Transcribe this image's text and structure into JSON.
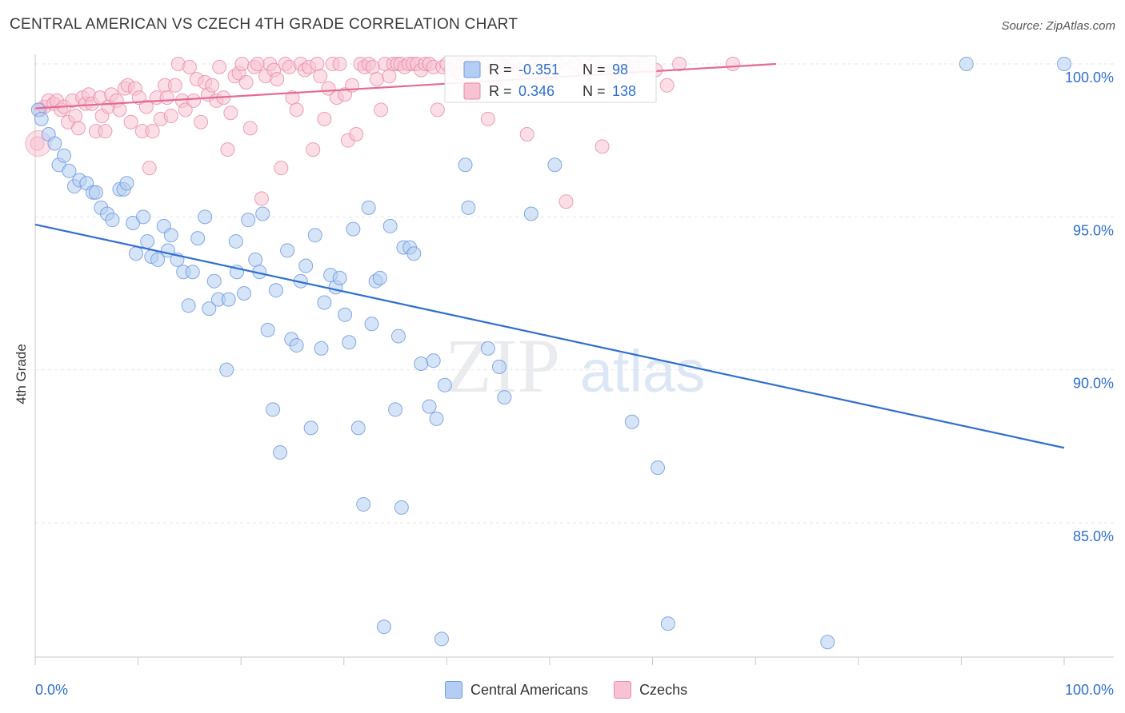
{
  "title": "CENTRAL AMERICAN VS CZECH 4TH GRADE CORRELATION CHART",
  "source": "Source: ZipAtlas.com",
  "watermark": {
    "zip": "ZIP",
    "atlas": "atlas"
  },
  "chart_data": {
    "type": "scatter",
    "ylabel": "4th Grade",
    "xlim": [
      0,
      100
    ],
    "ylim": [
      80.5,
      100.8
    ],
    "x_tick_labels": [
      "0.0%",
      "100.0%"
    ],
    "y_ticks": [
      100,
      95,
      90,
      85
    ],
    "y_tick_labels": [
      "100.0%",
      "95.0%",
      "90.0%",
      "85.0%"
    ],
    "grid": true,
    "legend_position": "top-center",
    "colors": {
      "central": "#6f9be0",
      "central_fill": "#b4cdf3",
      "czech": "#e98aa8",
      "czech_fill": "#f7c2d2",
      "central_line": "#2f6fce",
      "czech_line": "#e56a93",
      "value_text": "#2f6fce"
    },
    "legend_stats": [
      {
        "r_label": "R =",
        "r_value": "-0.351",
        "n_label": "N =",
        "n_value": "98"
      },
      {
        "r_label": "R =",
        "r_value": "0.346",
        "n_label": "N =",
        "n_value": "138"
      }
    ],
    "series": [
      {
        "name": "Central Americans",
        "trend": {
          "x": [
            0,
            100
          ],
          "y": [
            94.75,
            87.45
          ]
        },
        "points": [
          [
            0.3,
            98.5
          ],
          [
            0.6,
            98.2
          ],
          [
            1.3,
            97.7
          ],
          [
            1.9,
            97.4
          ],
          [
            2.3,
            96.7
          ],
          [
            2.8,
            97.0
          ],
          [
            3.3,
            96.5
          ],
          [
            3.8,
            96.0
          ],
          [
            4.3,
            96.2
          ],
          [
            5.0,
            96.1
          ],
          [
            5.6,
            95.8
          ],
          [
            5.9,
            95.8
          ],
          [
            6.4,
            95.3
          ],
          [
            7.0,
            95.1
          ],
          [
            7.5,
            94.9
          ],
          [
            8.2,
            95.9
          ],
          [
            8.6,
            95.9
          ],
          [
            8.9,
            96.1
          ],
          [
            9.5,
            94.8
          ],
          [
            9.8,
            93.8
          ],
          [
            10.5,
            95.0
          ],
          [
            10.9,
            94.2
          ],
          [
            11.3,
            93.7
          ],
          [
            11.9,
            93.6
          ],
          [
            12.5,
            94.7
          ],
          [
            12.9,
            93.9
          ],
          [
            13.2,
            94.4
          ],
          [
            13.8,
            93.6
          ],
          [
            14.4,
            93.2
          ],
          [
            14.9,
            92.1
          ],
          [
            15.3,
            93.2
          ],
          [
            15.8,
            94.3
          ],
          [
            16.5,
            95.0
          ],
          [
            16.9,
            92.0
          ],
          [
            17.4,
            92.9
          ],
          [
            17.8,
            92.3
          ],
          [
            18.8,
            92.3
          ],
          [
            18.6,
            90.0
          ],
          [
            19.5,
            94.2
          ],
          [
            19.6,
            93.2
          ],
          [
            20.3,
            92.5
          ],
          [
            20.7,
            94.9
          ],
          [
            21.4,
            93.6
          ],
          [
            21.8,
            93.2
          ],
          [
            22.1,
            95.1
          ],
          [
            22.6,
            91.3
          ],
          [
            23.1,
            88.7
          ],
          [
            23.4,
            92.6
          ],
          [
            23.8,
            87.3
          ],
          [
            24.5,
            93.9
          ],
          [
            24.9,
            91.0
          ],
          [
            25.4,
            90.8
          ],
          [
            25.8,
            92.9
          ],
          [
            26.3,
            93.4
          ],
          [
            26.8,
            88.1
          ],
          [
            27.2,
            94.4
          ],
          [
            27.8,
            90.7
          ],
          [
            28.1,
            92.2
          ],
          [
            28.7,
            93.1
          ],
          [
            29.2,
            92.7
          ],
          [
            29.6,
            93.0
          ],
          [
            30.1,
            91.8
          ],
          [
            30.5,
            90.9
          ],
          [
            30.9,
            94.6
          ],
          [
            31.4,
            88.1
          ],
          [
            31.9,
            85.6
          ],
          [
            32.4,
            95.3
          ],
          [
            32.7,
            91.5
          ],
          [
            33.1,
            92.9
          ],
          [
            33.5,
            93.0
          ],
          [
            33.9,
            81.6
          ],
          [
            34.5,
            94.7
          ],
          [
            35.0,
            88.7
          ],
          [
            35.3,
            91.1
          ],
          [
            35.6,
            85.5
          ],
          [
            35.8,
            94.0
          ],
          [
            36.4,
            94.0
          ],
          [
            36.8,
            93.8
          ],
          [
            37.5,
            90.2
          ],
          [
            38.3,
            88.8
          ],
          [
            38.7,
            90.3
          ],
          [
            39.0,
            88.4
          ],
          [
            39.5,
            81.2
          ],
          [
            39.8,
            89.5
          ],
          [
            41.8,
            96.7
          ],
          [
            42.1,
            95.3
          ],
          [
            44.0,
            90.7
          ],
          [
            45.1,
            90.1
          ],
          [
            45.6,
            89.1
          ],
          [
            48.2,
            95.1
          ],
          [
            50.5,
            96.7
          ],
          [
            58.0,
            88.3
          ],
          [
            60.5,
            86.8
          ],
          [
            61.5,
            81.7
          ],
          [
            77.0,
            81.1
          ],
          [
            90.5,
            100.0
          ],
          [
            100.0,
            100.0
          ]
        ]
      },
      {
        "name": "Czechs",
        "trend": {
          "x": [
            0,
            72
          ],
          "y": [
            98.55,
            100.0
          ]
        },
        "points": [
          [
            0.2,
            97.4
          ],
          [
            0.5,
            98.5
          ],
          [
            0.9,
            98.6
          ],
          [
            1.3,
            98.8
          ],
          [
            1.8,
            98.7
          ],
          [
            2.1,
            98.8
          ],
          [
            2.5,
            98.5
          ],
          [
            2.8,
            98.6
          ],
          [
            3.2,
            98.1
          ],
          [
            3.6,
            98.8
          ],
          [
            3.9,
            98.3
          ],
          [
            4.2,
            97.9
          ],
          [
            4.6,
            98.9
          ],
          [
            4.9,
            98.7
          ],
          [
            5.2,
            99.0
          ],
          [
            5.5,
            98.7
          ],
          [
            5.9,
            97.8
          ],
          [
            6.3,
            98.9
          ],
          [
            6.5,
            98.3
          ],
          [
            6.8,
            97.8
          ],
          [
            7.1,
            98.6
          ],
          [
            7.4,
            99.0
          ],
          [
            7.9,
            98.8
          ],
          [
            8.2,
            98.5
          ],
          [
            8.7,
            99.2
          ],
          [
            9.0,
            99.3
          ],
          [
            9.3,
            98.1
          ],
          [
            9.7,
            99.2
          ],
          [
            10.1,
            98.9
          ],
          [
            10.4,
            97.8
          ],
          [
            10.8,
            98.6
          ],
          [
            11.1,
            96.6
          ],
          [
            11.4,
            97.8
          ],
          [
            11.8,
            98.9
          ],
          [
            12.2,
            98.2
          ],
          [
            12.6,
            99.3
          ],
          [
            12.8,
            98.9
          ],
          [
            13.2,
            98.3
          ],
          [
            13.6,
            99.3
          ],
          [
            13.9,
            100.0
          ],
          [
            14.3,
            98.8
          ],
          [
            14.6,
            98.5
          ],
          [
            15.0,
            99.9
          ],
          [
            15.4,
            98.8
          ],
          [
            15.7,
            99.5
          ],
          [
            16.1,
            98.1
          ],
          [
            16.5,
            99.4
          ],
          [
            16.8,
            99.0
          ],
          [
            17.2,
            99.3
          ],
          [
            17.6,
            98.8
          ],
          [
            17.9,
            99.9
          ],
          [
            18.3,
            98.9
          ],
          [
            18.7,
            97.2
          ],
          [
            19.0,
            98.4
          ],
          [
            19.4,
            99.6
          ],
          [
            19.8,
            99.7
          ],
          [
            20.1,
            100.0
          ],
          [
            20.5,
            99.4
          ],
          [
            20.9,
            97.9
          ],
          [
            21.3,
            99.9
          ],
          [
            21.6,
            100.0
          ],
          [
            22.0,
            95.6
          ],
          [
            22.4,
            99.6
          ],
          [
            22.8,
            100.0
          ],
          [
            23.2,
            99.8
          ],
          [
            23.5,
            99.5
          ],
          [
            23.9,
            96.6
          ],
          [
            24.3,
            100.0
          ],
          [
            24.7,
            99.9
          ],
          [
            25.0,
            98.9
          ],
          [
            25.4,
            98.5
          ],
          [
            25.8,
            100.0
          ],
          [
            26.2,
            99.8
          ],
          [
            26.6,
            99.9
          ],
          [
            27.0,
            97.2
          ],
          [
            27.4,
            100.0
          ],
          [
            27.7,
            99.6
          ],
          [
            28.1,
            98.2
          ],
          [
            28.5,
            99.2
          ],
          [
            28.9,
            100.0
          ],
          [
            29.3,
            98.9
          ],
          [
            29.6,
            100.0
          ],
          [
            30.1,
            99.0
          ],
          [
            30.4,
            97.5
          ],
          [
            30.8,
            99.3
          ],
          [
            31.2,
            97.7
          ],
          [
            31.6,
            100.0
          ],
          [
            32.0,
            99.9
          ],
          [
            32.4,
            100.0
          ],
          [
            32.8,
            99.9
          ],
          [
            33.2,
            99.5
          ],
          [
            33.6,
            98.5
          ],
          [
            34.0,
            100.0
          ],
          [
            34.4,
            99.6
          ],
          [
            34.8,
            100.0
          ],
          [
            35.2,
            100.0
          ],
          [
            35.5,
            100.0
          ],
          [
            35.9,
            99.9
          ],
          [
            36.3,
            100.0
          ],
          [
            36.7,
            100.0
          ],
          [
            37.1,
            100.0
          ],
          [
            37.5,
            99.8
          ],
          [
            37.9,
            100.0
          ],
          [
            38.3,
            100.0
          ],
          [
            38.7,
            99.9
          ],
          [
            39.1,
            98.5
          ],
          [
            39.6,
            99.9
          ],
          [
            40.0,
            100.0
          ],
          [
            40.4,
            99.8
          ],
          [
            40.8,
            100.0
          ],
          [
            41.2,
            99.7
          ],
          [
            41.6,
            100.0
          ],
          [
            42.0,
            100.0
          ],
          [
            42.5,
            100.0
          ],
          [
            43.0,
            99.9
          ],
          [
            43.5,
            100.0
          ],
          [
            44.0,
            98.2
          ],
          [
            44.6,
            99.8
          ],
          [
            45.2,
            100.0
          ],
          [
            45.8,
            99.9
          ],
          [
            46.5,
            100.0
          ],
          [
            47.1,
            99.8
          ],
          [
            47.8,
            97.7
          ],
          [
            48.5,
            100.0
          ],
          [
            49.2,
            100.0
          ],
          [
            50.0,
            99.7
          ],
          [
            50.8,
            100.0
          ],
          [
            51.6,
            95.5
          ],
          [
            52.4,
            100.0
          ],
          [
            53.3,
            99.8
          ],
          [
            54.2,
            100.0
          ],
          [
            55.1,
            97.3
          ],
          [
            56.1,
            99.7
          ],
          [
            57.1,
            100.0
          ],
          [
            58.1,
            99.9
          ],
          [
            59.2,
            100.0
          ],
          [
            60.3,
            99.8
          ],
          [
            61.4,
            99.3
          ],
          [
            62.6,
            100.0
          ],
          [
            67.8,
            100.0
          ]
        ]
      }
    ]
  }
}
